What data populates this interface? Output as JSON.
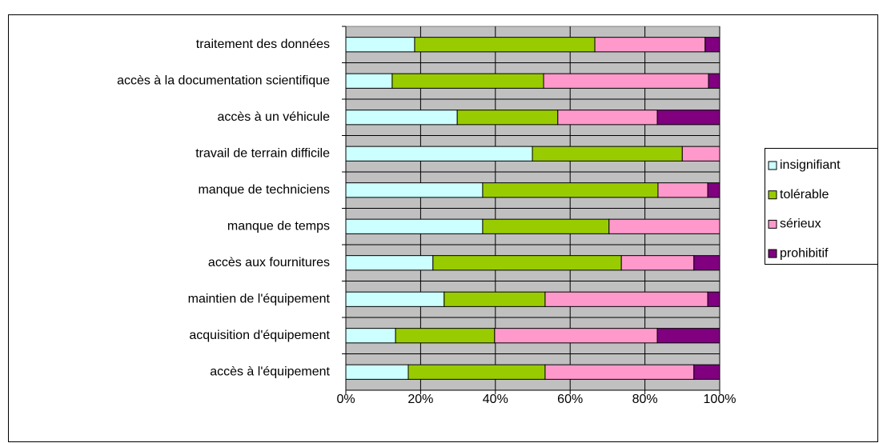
{
  "chart_data": {
    "type": "stacked-barh",
    "categories": [
      "traitement des données",
      "accès à la documentation scientifique",
      "accès à un véhicule",
      "travail de terrain difficile",
      "manque de techniciens",
      "manque de temps",
      "accès aux fournitures",
      "maintien de l'équipement",
      "acquisition d'équipement",
      "accès à l'équipement"
    ],
    "series": [
      {
        "name": "insignifiant",
        "color": "#ccffff",
        "values": [
          18.4,
          12.4,
          29.8,
          49.9,
          36.6,
          36.6,
          23.3,
          26.3,
          13.3,
          16.7
        ]
      },
      {
        "name": "tolérable",
        "color": "#99cc00",
        "values": [
          48.2,
          40.5,
          26.9,
          40.1,
          46.9,
          33.8,
          50.4,
          27.0,
          26.5,
          36.6
        ]
      },
      {
        "name": "sérieux",
        "color": "#ff99cc",
        "values": [
          29.5,
          44.1,
          26.6,
          10.0,
          13.3,
          29.6,
          19.4,
          43.5,
          43.5,
          39.8
        ]
      },
      {
        "name": "prohibitif",
        "color": "#800080",
        "values": [
          3.9,
          3.0,
          16.7,
          0,
          3.2,
          0,
          6.9,
          3.2,
          16.7,
          6.9
        ]
      }
    ],
    "xlim": [
      0,
      100
    ],
    "xticks": [
      {
        "value": 0,
        "label": "0%"
      },
      {
        "value": 20,
        "label": "20%"
      },
      {
        "value": 40,
        "label": "40%"
      },
      {
        "value": 60,
        "label": "60%"
      },
      {
        "value": 80,
        "label": "80%"
      },
      {
        "value": 100,
        "label": "100%"
      }
    ],
    "grid": true,
    "legend": "right"
  }
}
